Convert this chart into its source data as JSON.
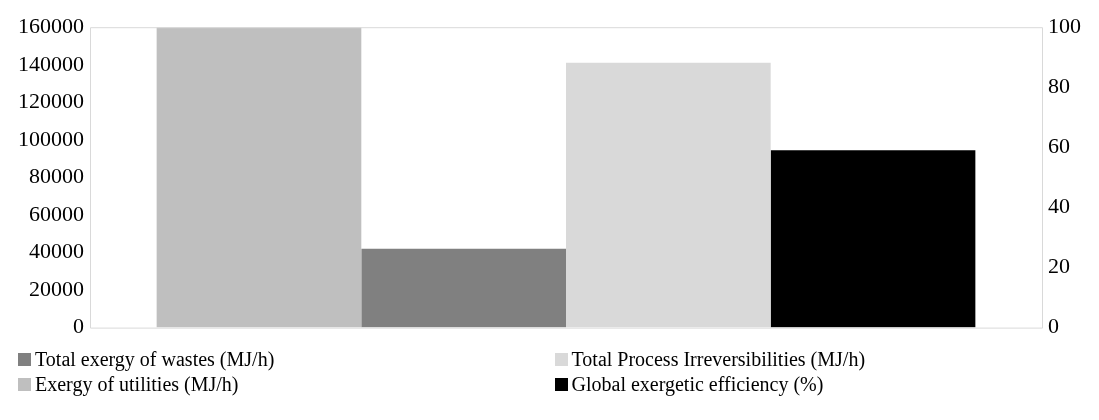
{
  "chart_data": {
    "type": "bar",
    "categories": [
      null
    ],
    "series": [
      {
        "name": "Exergy of utilities (MJ/h)",
        "color": "#bfbfbf",
        "values": [
          160000
        ]
      },
      {
        "name": "Total exergy of wastes (MJ/h)",
        "color": "#808080",
        "values": [
          42000
        ]
      },
      {
        "name": "Total Process Irreversibilities (MJ/h)",
        "color": "#d9d9d9",
        "values": [
          141000
        ]
      },
      {
        "name": "Global exergetic efficiency (%)",
        "color": "#000000",
        "values": [
          59
        ],
        "axis": "y2"
      }
    ],
    "ylim": [
      0,
      160000
    ],
    "yticks": [
      0,
      20000,
      40000,
      60000,
      80000,
      100000,
      120000,
      140000,
      160000
    ],
    "y2lim": [
      0,
      100
    ],
    "y2ticks": [
      0,
      20,
      40,
      60,
      80,
      100
    ],
    "grid": false,
    "legend": "bottom"
  }
}
